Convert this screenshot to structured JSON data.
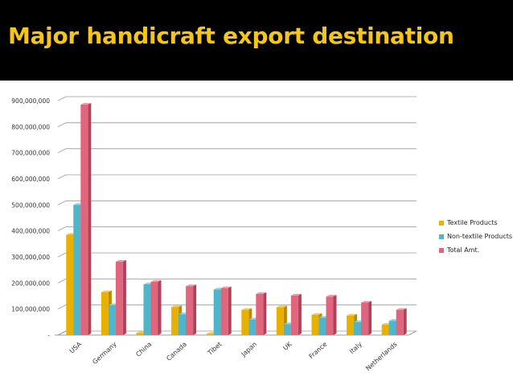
{
  "slide": {
    "title": "Major handicraft export destination"
  },
  "chart_data": {
    "type": "bar",
    "variant": "3d-clustered-column",
    "title": "",
    "xlabel": "",
    "ylabel": "",
    "ylim": [
      0,
      900000000
    ],
    "yticks": [
      "-",
      "100,000,000",
      "200,000,000",
      "300,000,000",
      "400,000,000",
      "500,000,000",
      "600,000,000",
      "700,000,000",
      "800,000,000",
      "900,000,000"
    ],
    "grid": true,
    "legend_position": "right",
    "categories": [
      "USA",
      "Germany",
      "China",
      "Canada",
      "Tibet",
      "Japan",
      "UK",
      "France",
      "Italy",
      "Netherlands"
    ],
    "series": [
      {
        "name": "Textile Products",
        "color": "#e8b000",
        "side": "#b88a00",
        "top": "#f3cc4a",
        "values": [
          385000000,
          165000000,
          8000000,
          108000000,
          5000000,
          97000000,
          107000000,
          78000000,
          75000000,
          40000000
        ]
      },
      {
        "name": "Non-textile Products",
        "color": "#4fb5c8",
        "side": "#2e8b9c",
        "top": "#8fd4e0",
        "values": [
          500000000,
          115000000,
          195000000,
          80000000,
          175000000,
          60000000,
          42000000,
          67000000,
          50000000,
          55000000
        ]
      },
      {
        "name": "Total Amt.",
        "color": "#e0667e",
        "side": "#b04258",
        "top": "#f096a8",
        "values": [
          885000000,
          282000000,
          205000000,
          188000000,
          180000000,
          158000000,
          152000000,
          148000000,
          125000000,
          97000000
        ]
      }
    ]
  }
}
